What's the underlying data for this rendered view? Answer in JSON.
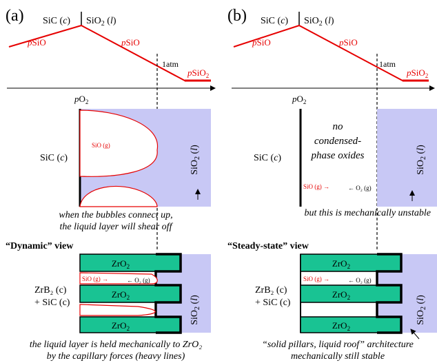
{
  "panel_a": {
    "label": "(a)",
    "phase_sic": "SiC (",
    "phase_sic_c": "c",
    "phase_sic_close": ")",
    "phase_sio2": "SiO",
    "phase_sio2_sub": "2",
    "phase_sio2_l": "l",
    "psio_left": "pSiO",
    "psio_right": "pSiO",
    "psio2": "pSiO",
    "psio2_sub": "2",
    "atm": "1atm",
    "po2": "pO",
    "po2_sub": "2",
    "region_sic": "SiC (c)",
    "region_sio2": "SiO₂ (l)",
    "bubble_label": "SiO (g)",
    "caption_line1": "when the bubbles connect up,",
    "caption_line2": "the liquid layer will shear off",
    "view_title": "“Dynamic” view",
    "zro2_top": "ZrO",
    "zro2_mid": "ZrO",
    "zro2_bot": "ZrO",
    "zro2_sub": "2",
    "sio_arrow": "SiO (g) →",
    "o2_arrow": "← O₂ (g)",
    "zrb2": "ZrB₂ (c)",
    "plus_sic": "+ SiC (c)",
    "caption2_line1": "the liquid layer is held mechanically to ZrO₂",
    "caption2_line2": "by the capillary forces (heavy lines)"
  },
  "panel_b": {
    "label": "(b)",
    "region_text_1": "no",
    "region_text_2": "condensed-",
    "region_text_3": "phase oxides",
    "sio_arrow": "SiO (g) →",
    "o2_arrow": "← O₂ (g)",
    "caption_line1": "but this is mechanically unstable",
    "view_title": "“Steady-state” view",
    "caption2_line1": "“solid pillars, liquid roof” architecture",
    "caption2_line2": "mechanically still stable"
  },
  "colors": {
    "red": "#e60000",
    "lavender": "#c8c8f5",
    "zro2_green": "#19c393"
  }
}
